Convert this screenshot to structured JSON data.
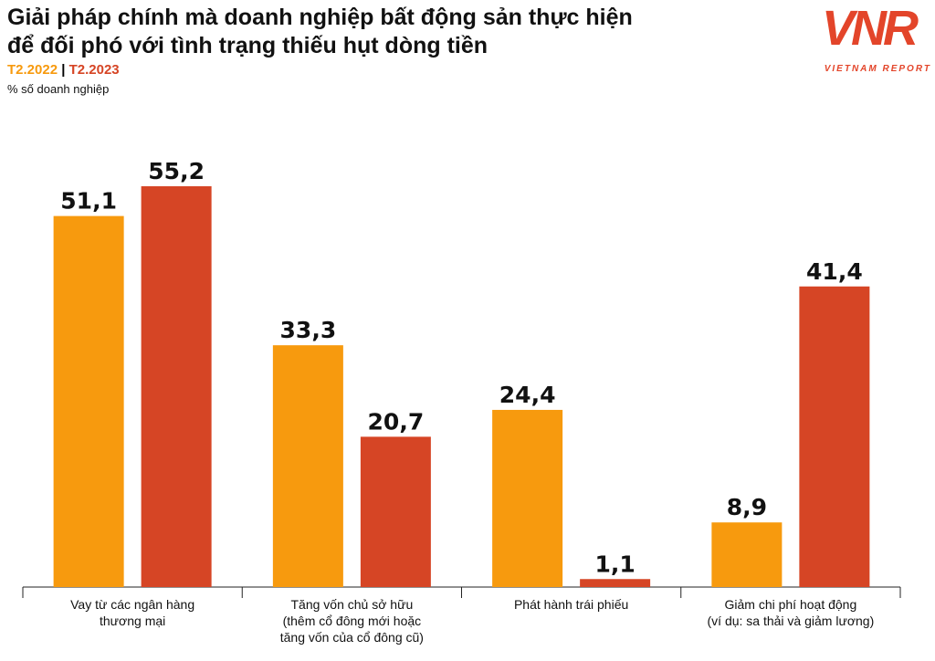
{
  "chart_data": {
    "type": "bar",
    "title": "Giải pháp chính mà doanh nghiệp bất động sản thực hiện\nđể đối phó với tình trạng thiếu hụt dòng tiền",
    "subtitle": "% số doanh nghiệp",
    "categories": [
      "Vay từ các ngân hàng\nthương mại",
      "Tăng vốn chủ sở hữu\n(thêm cổ đông mới hoặc\ntăng vốn của cổ đông cũ)",
      "Phát hành trái phiếu",
      "Giảm chi phí hoạt động\n(ví dụ: sa thải và giảm lương)"
    ],
    "series": [
      {
        "name": "T2.2022",
        "color": "#f79a0e",
        "values": [
          51.1,
          33.3,
          24.4,
          8.9
        ],
        "value_labels": [
          "51,1",
          "33,3",
          "24,4",
          "8,9"
        ]
      },
      {
        "name": "T2.2023",
        "color": "#d64525",
        "values": [
          55.2,
          20.7,
          1.1,
          41.4
        ],
        "value_labels": [
          "55,2",
          "20,7",
          "1,1",
          "41,4"
        ]
      }
    ]
  },
  "logo": {
    "mark": "VNR",
    "text": "VIETNAM REPORT"
  }
}
